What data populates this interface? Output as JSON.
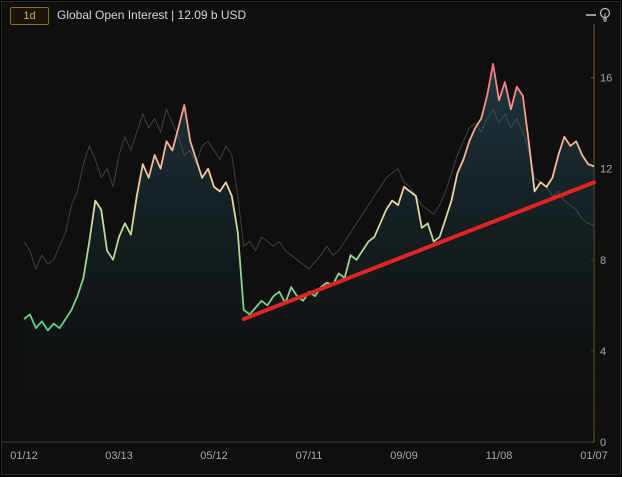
{
  "header": {
    "timeframe": "1d",
    "title": "Global Open Interest | 12.09 b USD"
  },
  "icons": {
    "minimize": "minimize-icon",
    "insight": "lightbulb-icon"
  },
  "colors": {
    "trend_line": "#e02424",
    "series_low": "#4fd08a",
    "series_mid": "#f0d8a0",
    "series_high": "#ff6f7f",
    "ghost_series": "#4a5a5f"
  },
  "chart_data": {
    "type": "line",
    "ylim": [
      0,
      18
    ],
    "y_ticks": [
      "0",
      "4",
      "8",
      "12",
      "16"
    ],
    "x_ticks": [
      "01/12",
      "03/13",
      "05/12",
      "07/11",
      "09/09",
      "11/08",
      "01/07"
    ],
    "series": [
      {
        "values": [
          5.4,
          5.6,
          5.0,
          5.3,
          4.9,
          5.2,
          5.0,
          5.4,
          5.8,
          6.4,
          7.2,
          8.8,
          10.6,
          10.2,
          8.4,
          8.0,
          9.0,
          9.6,
          9.1,
          10.8,
          12.2,
          11.6,
          12.6,
          12.0,
          13.2,
          12.8,
          13.8,
          14.8,
          13.2,
          12.4,
          11.6,
          12.0,
          11.2,
          11.0,
          11.4,
          10.8,
          9.2,
          5.8,
          5.6,
          5.9,
          6.2,
          6.0,
          6.4,
          6.6,
          6.1,
          6.8,
          6.4,
          6.2,
          6.6,
          6.4,
          6.8,
          7.0,
          6.9,
          7.4,
          7.2,
          8.2,
          8.0,
          8.4,
          8.8,
          9.0,
          9.6,
          10.2,
          10.6,
          10.4,
          11.2,
          11.0,
          10.8,
          9.4,
          9.6,
          8.8,
          9.0,
          9.8,
          10.6,
          11.8,
          12.4,
          13.2,
          13.8,
          14.2,
          15.2,
          16.6,
          15.0,
          15.8,
          14.6,
          15.6,
          15.2,
          13.2,
          11.0,
          11.4,
          11.2,
          11.6,
          12.6,
          13.4,
          13.0,
          13.2,
          12.6,
          12.2,
          12.1
        ],
        "ghost_values": [
          8.8,
          8.4,
          7.6,
          8.2,
          7.8,
          8.0,
          8.6,
          9.2,
          10.4,
          11.0,
          12.2,
          13.0,
          12.4,
          11.6,
          12.0,
          11.2,
          12.6,
          13.4,
          12.8,
          13.6,
          14.4,
          13.8,
          14.2,
          13.6,
          14.6,
          14.0,
          13.4,
          12.6,
          12.8,
          12.2,
          13.0,
          13.2,
          12.8,
          12.4,
          13.0,
          12.6,
          10.8,
          8.6,
          8.8,
          8.4,
          9.0,
          8.8,
          8.6,
          8.8,
          8.4,
          8.2,
          8.0,
          7.8,
          7.6,
          7.9,
          8.2,
          8.6,
          8.2,
          8.4,
          8.8,
          9.2,
          9.6,
          10.0,
          10.4,
          10.8,
          11.2,
          11.6,
          11.8,
          12.0,
          11.4,
          11.2,
          10.8,
          10.4,
          10.2,
          10.0,
          10.4,
          11.0,
          11.8,
          12.6,
          13.2,
          13.8,
          14.0,
          13.6,
          14.2,
          14.6,
          14.0,
          14.4,
          13.8,
          14.2,
          13.6,
          12.8,
          11.6,
          11.4,
          11.2,
          10.8,
          11.0,
          10.6,
          10.4,
          10.2,
          9.8,
          9.6,
          9.5
        ]
      }
    ],
    "trend_line": {
      "start": [
        37,
        5.4
      ],
      "end": [
        96,
        11.4
      ]
    },
    "grid": false,
    "legend": "none"
  }
}
